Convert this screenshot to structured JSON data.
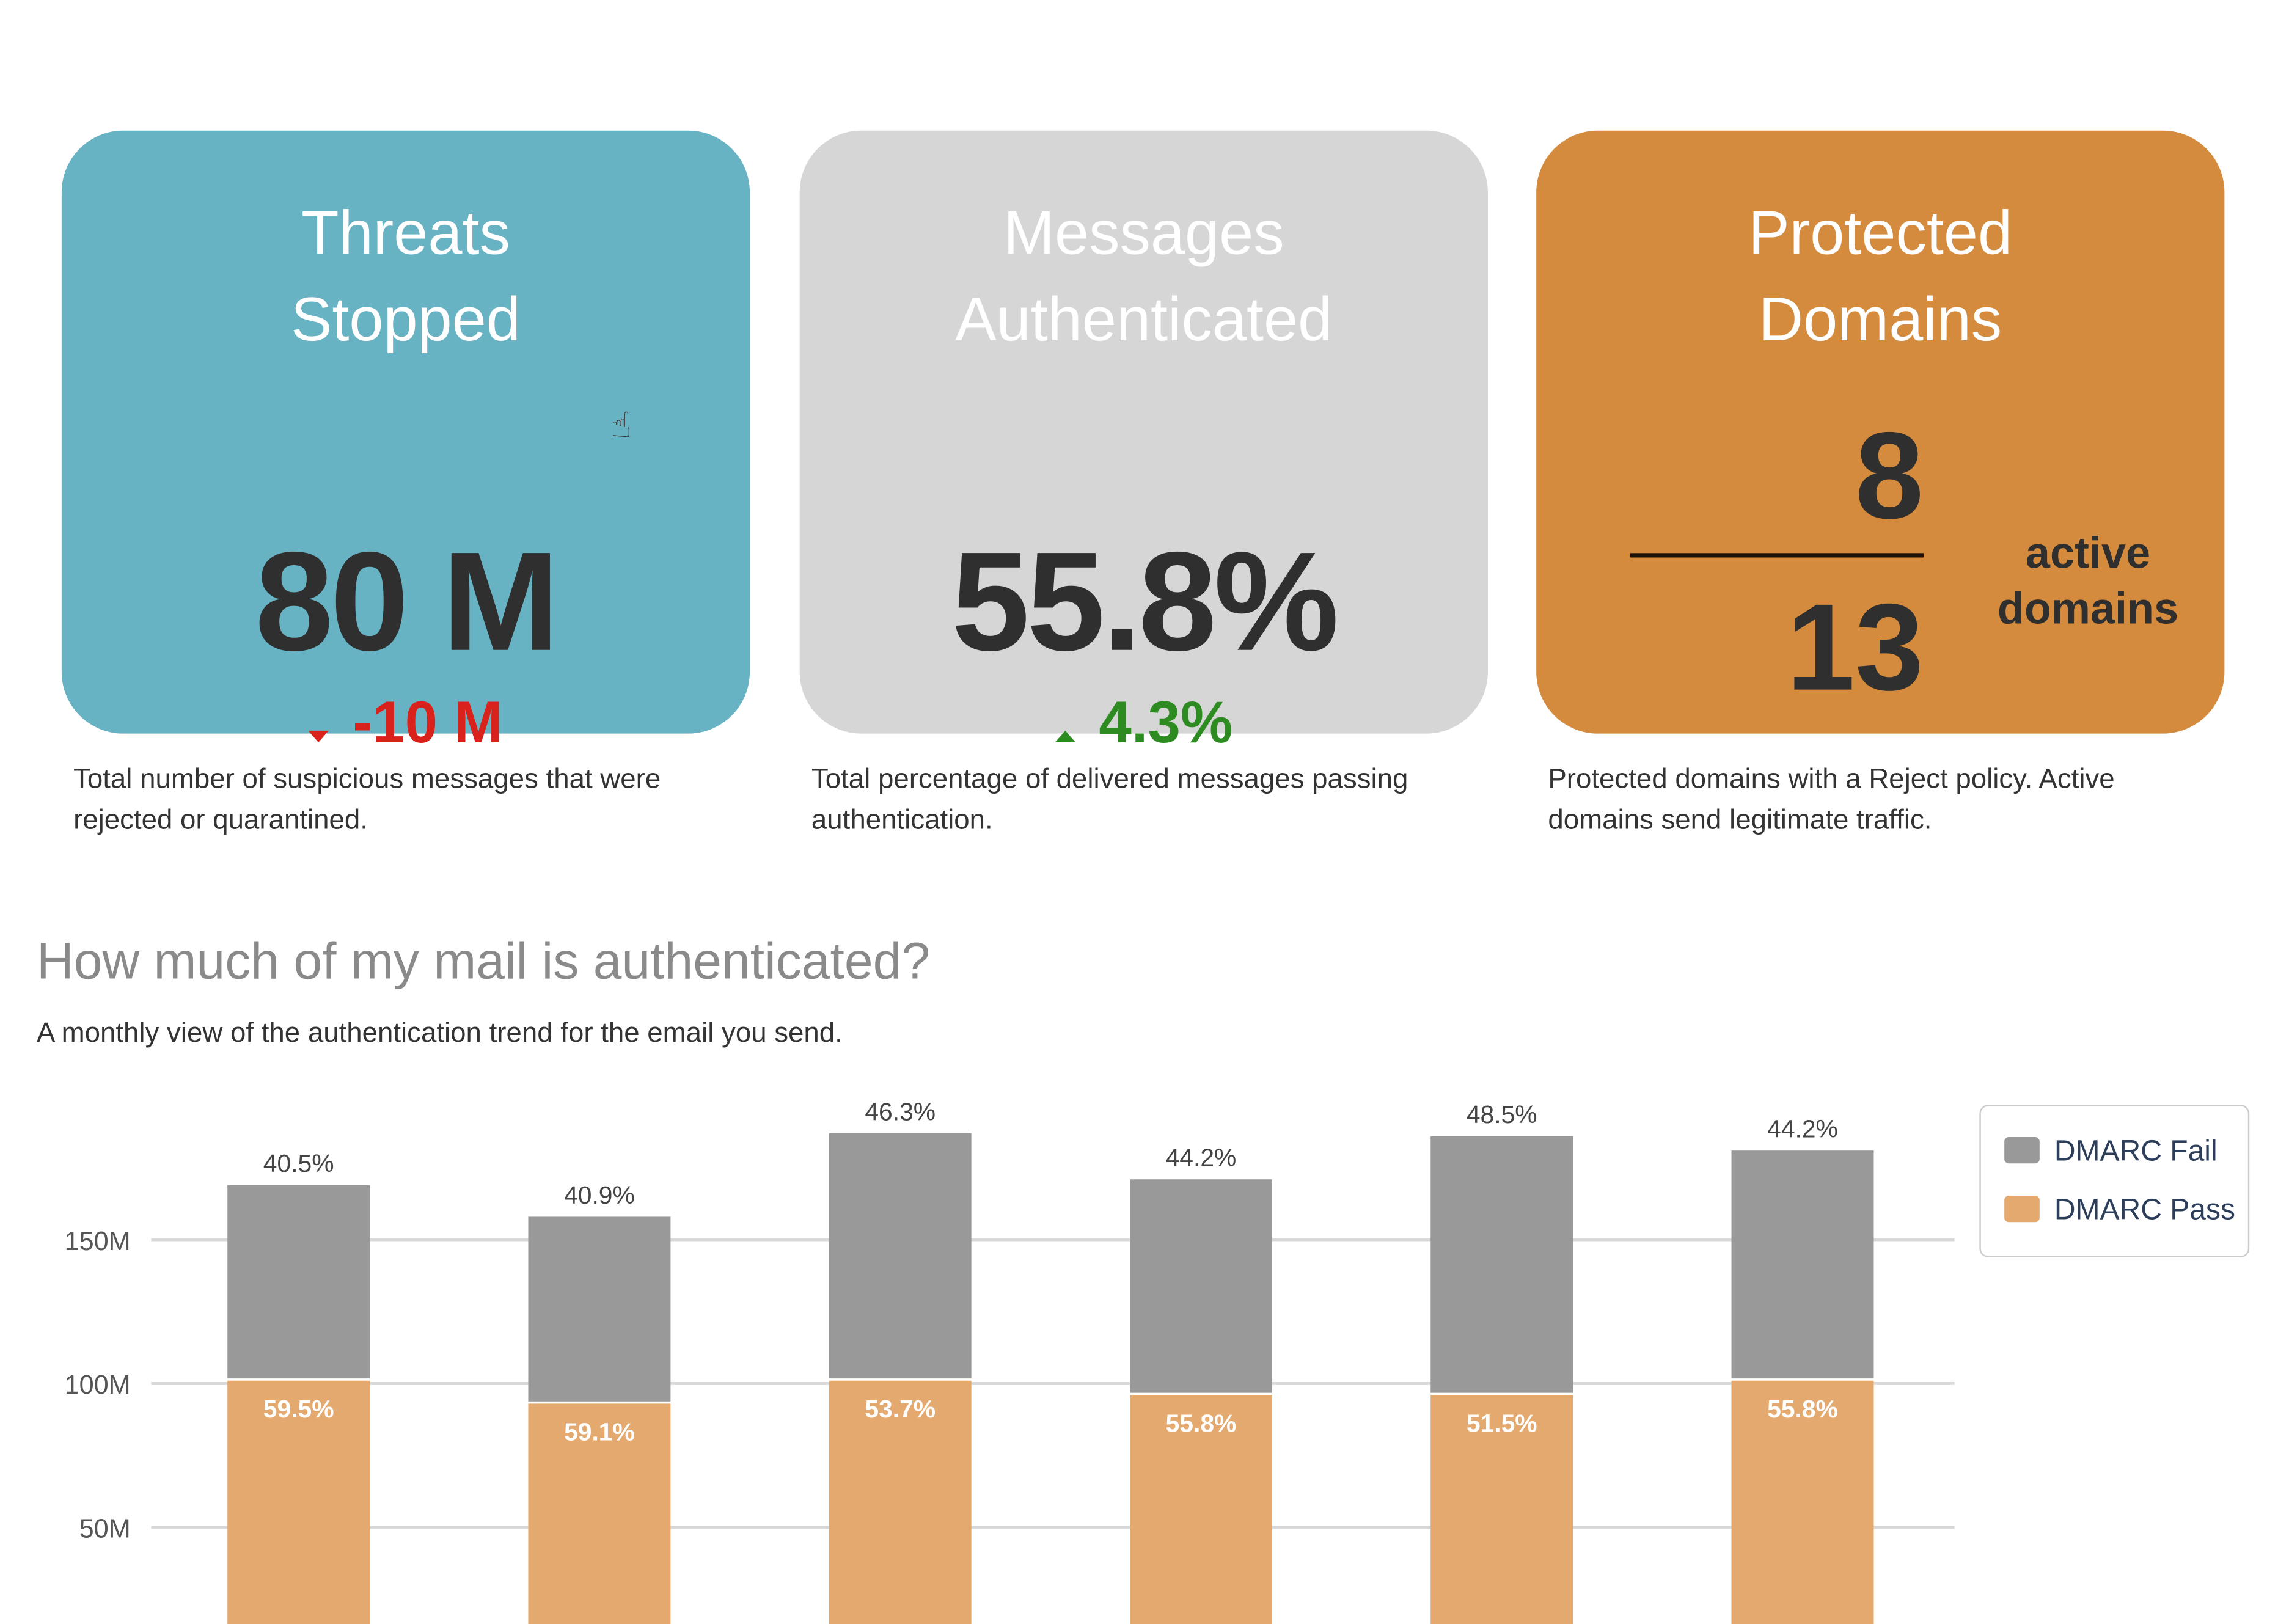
{
  "cards": [
    {
      "title_line1": "Threats",
      "title_line2": "Stopped",
      "value": "80 M",
      "delta": "-10 M",
      "delta_direction": "down",
      "delta_color": "#d9221c",
      "background": "#67b3c4",
      "description": "Total number of suspicious messages that were rejected or quarantined."
    },
    {
      "title_line1": "Messages",
      "title_line2": "Authenticated",
      "value": "55.8%",
      "delta": "4.3%",
      "delta_direction": "up",
      "delta_color": "#2e8b22",
      "background": "#d6d6d6",
      "description": "Total percentage of delivered messages passing authentication."
    },
    {
      "title_line1": "Protected",
      "title_line2": "Domains",
      "numerator": "8",
      "denominator": "13",
      "unit_line1": "active",
      "unit_line2": "domains",
      "background": "#d48b3d",
      "description": "Protected domains with a Reject policy. Active domains send legitimate traffic."
    }
  ],
  "section": {
    "title": "How much of my mail is authenticated?",
    "subtitle": "A monthly view of the authentication trend for the email you send."
  },
  "chart_data": {
    "type": "bar",
    "stacked": true,
    "ylim": [
      0,
      190
    ],
    "yticks": [
      50,
      100,
      150
    ],
    "ytick_labels": [
      "50M",
      "100M",
      "150M"
    ],
    "grid": true,
    "legend_position": "top-right",
    "series": [
      {
        "name": "DMARC Pass",
        "color": "#e3a96e",
        "values": [
          101,
          93,
          101,
          96,
          96,
          101
        ],
        "labels": [
          "59.5%",
          "59.1%",
          "53.7%",
          "55.8%",
          "51.5%",
          "55.8%"
        ]
      },
      {
        "name": "DMARC Fail",
        "color": "#999999",
        "values": [
          68,
          65,
          86,
          75,
          90,
          80
        ],
        "labels": [
          "40.5%",
          "40.9%",
          "46.3%",
          "44.2%",
          "48.5%",
          "44.2%"
        ]
      }
    ]
  }
}
